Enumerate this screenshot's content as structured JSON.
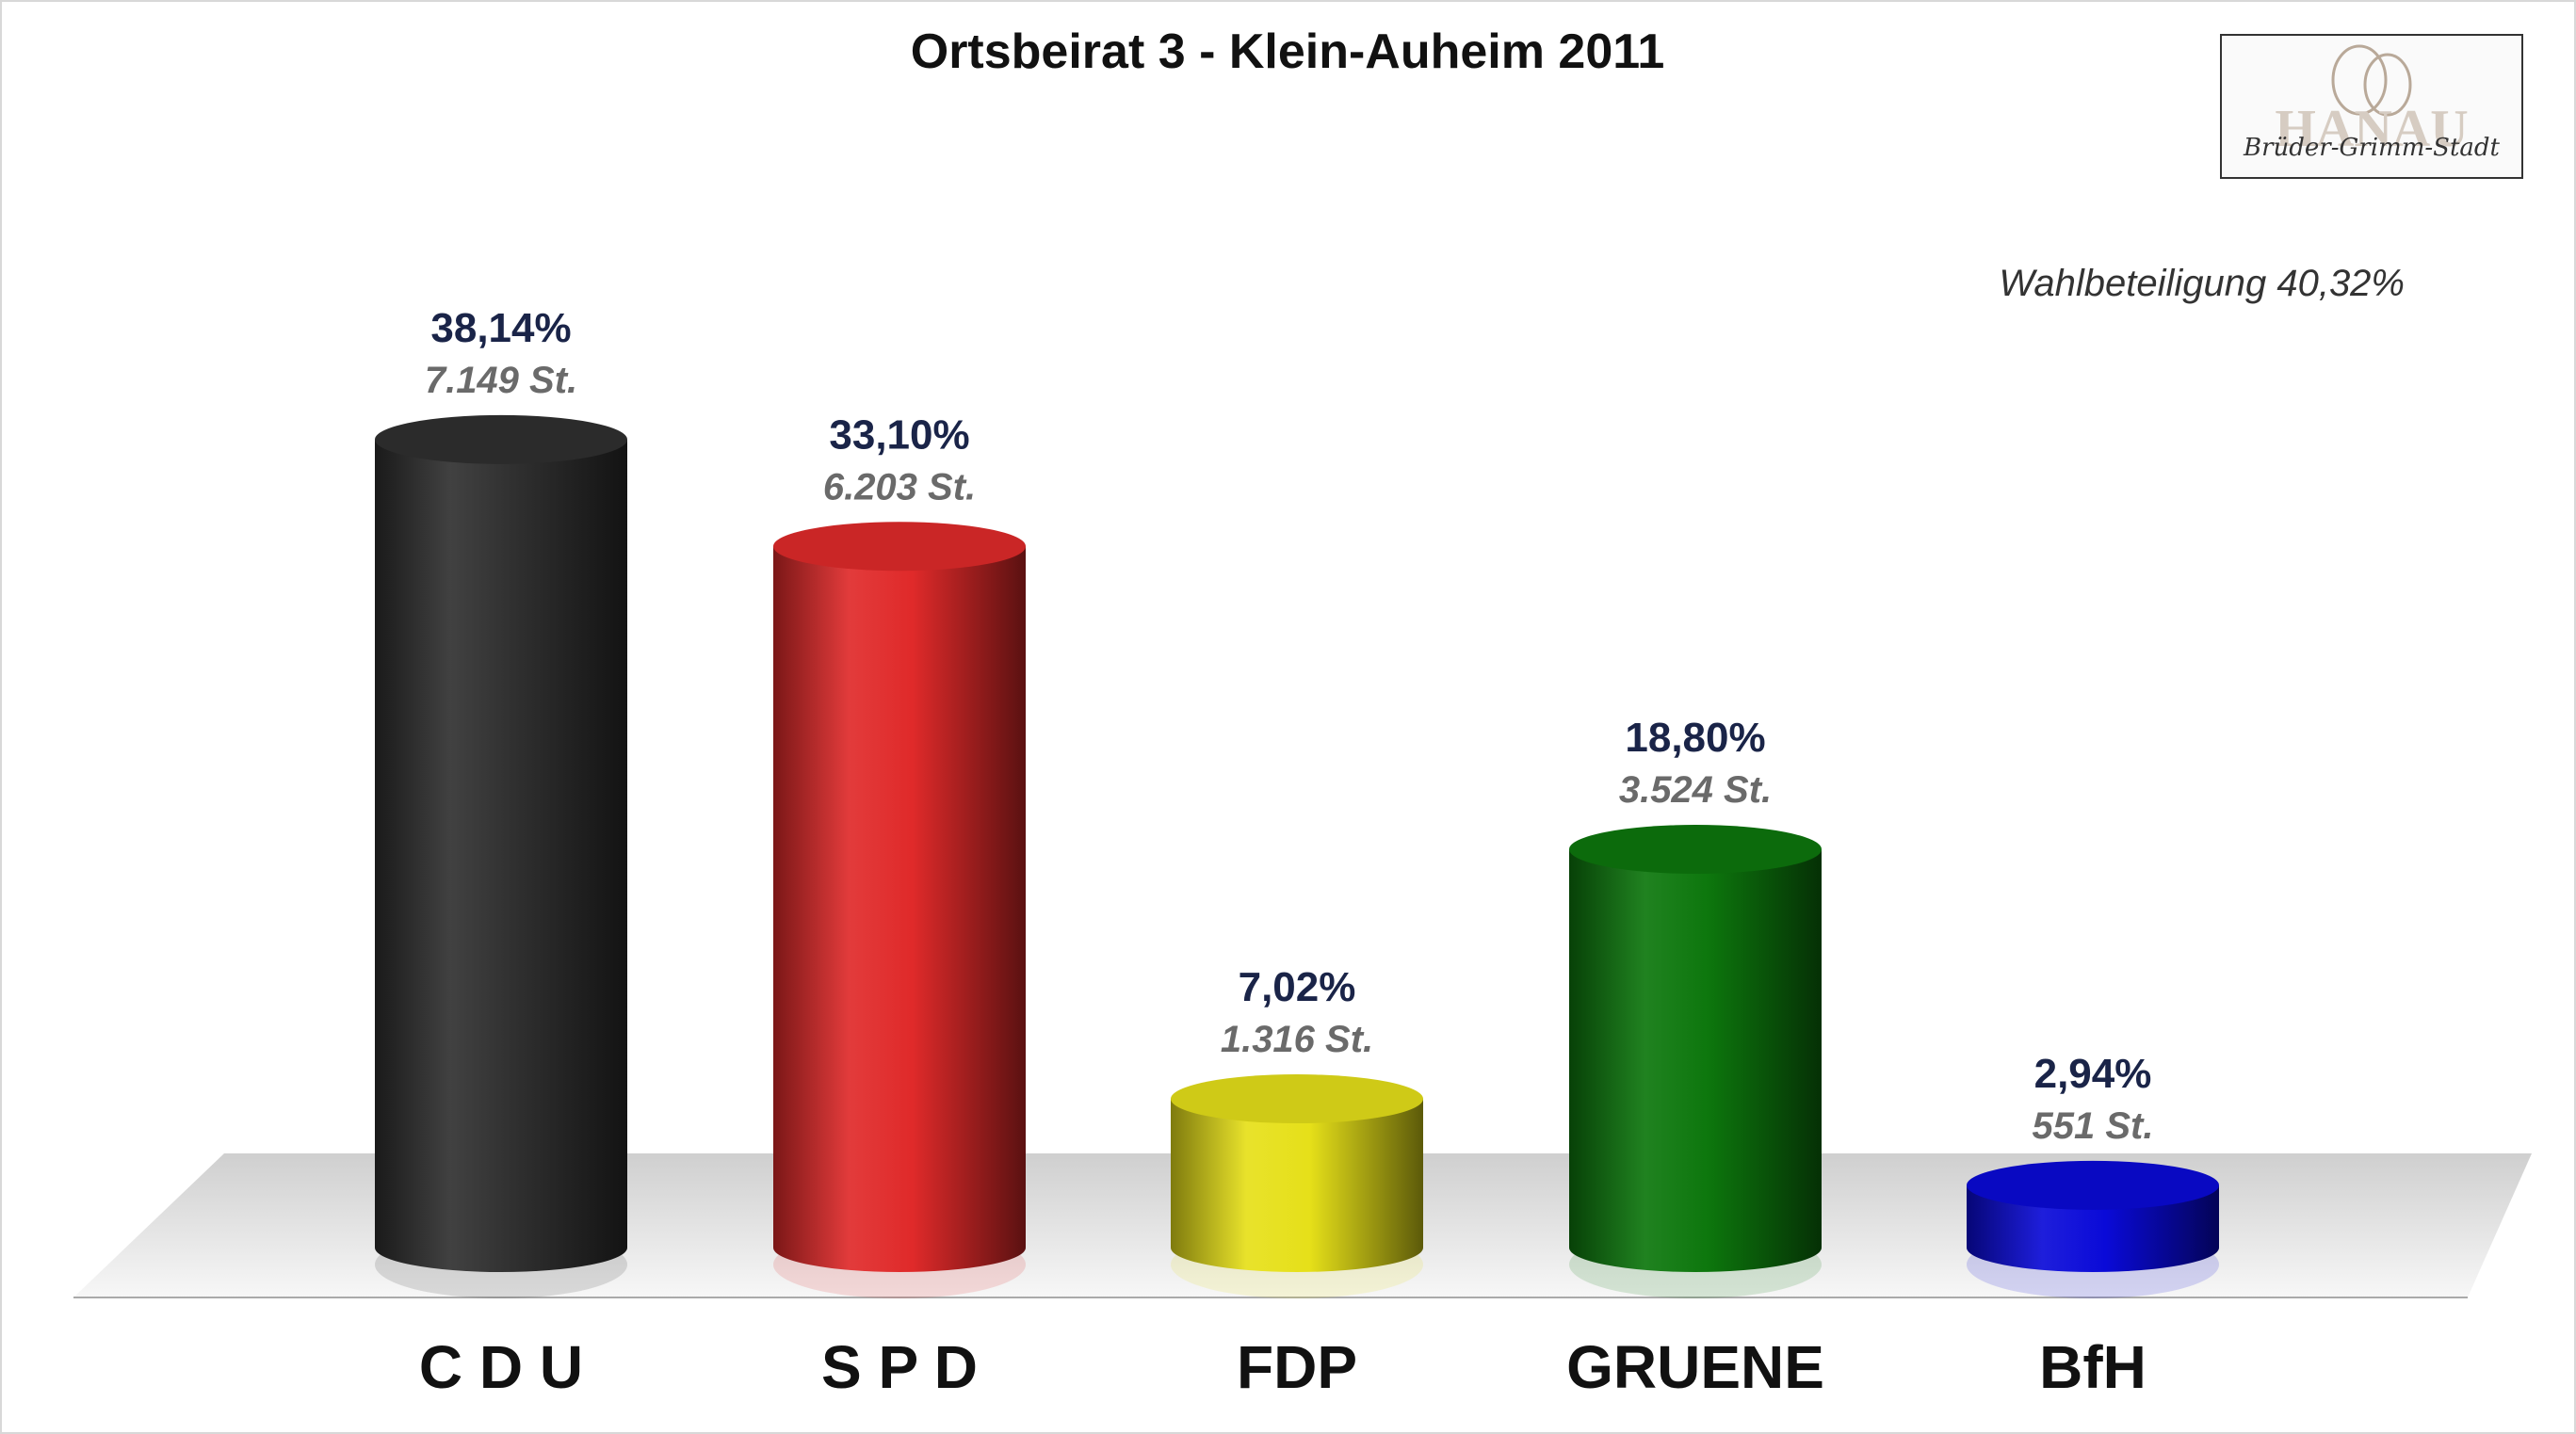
{
  "logo": {
    "text": "Brüder-Grimm-Stadt",
    "mark": "HANAU"
  },
  "turnout": "Wahlbeteiligung 40,32%",
  "chart_data": {
    "type": "bar",
    "title": "Ortsbeirat 3 - Klein-Auheim 2011",
    "categories": [
      "C D U",
      "S P D",
      "FDP",
      "GRUENE",
      "BfH"
    ],
    "values": [
      38.14,
      33.1,
      7.02,
      18.8,
      2.94
    ],
    "value_labels": [
      "38,14%",
      "33,10%",
      "7,02%",
      "18,80%",
      "2,94%"
    ],
    "votes": [
      7149,
      6203,
      1316,
      3524,
      551
    ],
    "vote_labels": [
      "7.149 St.",
      "6.203 St.",
      "1.316 St.",
      "3.524 St.",
      "551 St."
    ],
    "colors": [
      "#303030",
      "#e02a2a",
      "#e6e019",
      "#0d770d",
      "#0a0ad8"
    ],
    "ylim": [
      0,
      40
    ]
  }
}
